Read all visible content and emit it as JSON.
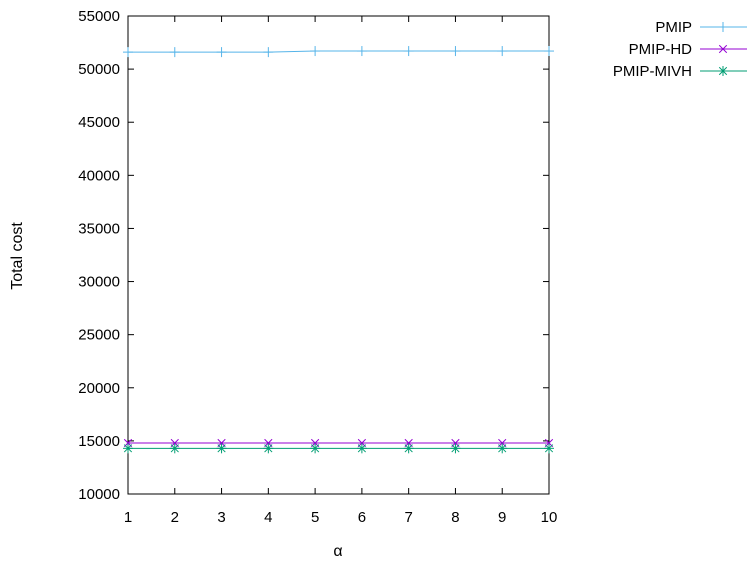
{
  "chart_data": {
    "type": "line",
    "xlabel": "α",
    "ylabel": "Total cost",
    "xlim": [
      1,
      10
    ],
    "ylim": [
      10000,
      55000
    ],
    "x": [
      1,
      2,
      3,
      4,
      5,
      6,
      7,
      8,
      9,
      10
    ],
    "yticks": [
      10000,
      15000,
      20000,
      25000,
      30000,
      35000,
      40000,
      45000,
      50000,
      55000
    ],
    "xticks": [
      1,
      2,
      3,
      4,
      5,
      6,
      7,
      8,
      9,
      10
    ],
    "grid": false,
    "legend_position": "outside-top-right",
    "series": [
      {
        "name": "PMIP",
        "color": "#56b4e9",
        "marker": "plus",
        "values": [
          51600,
          51600,
          51600,
          51600,
          51700,
          51700,
          51700,
          51700,
          51700,
          51700
        ]
      },
      {
        "name": "PMIP-HD",
        "color": "#9400d3",
        "marker": "cross",
        "values": [
          14800,
          14800,
          14800,
          14800,
          14800,
          14800,
          14800,
          14800,
          14800,
          14800
        ]
      },
      {
        "name": "PMIP-MIVH",
        "color": "#009e73",
        "marker": "star",
        "values": [
          14300,
          14300,
          14300,
          14300,
          14300,
          14300,
          14300,
          14300,
          14300,
          14300
        ]
      }
    ]
  }
}
